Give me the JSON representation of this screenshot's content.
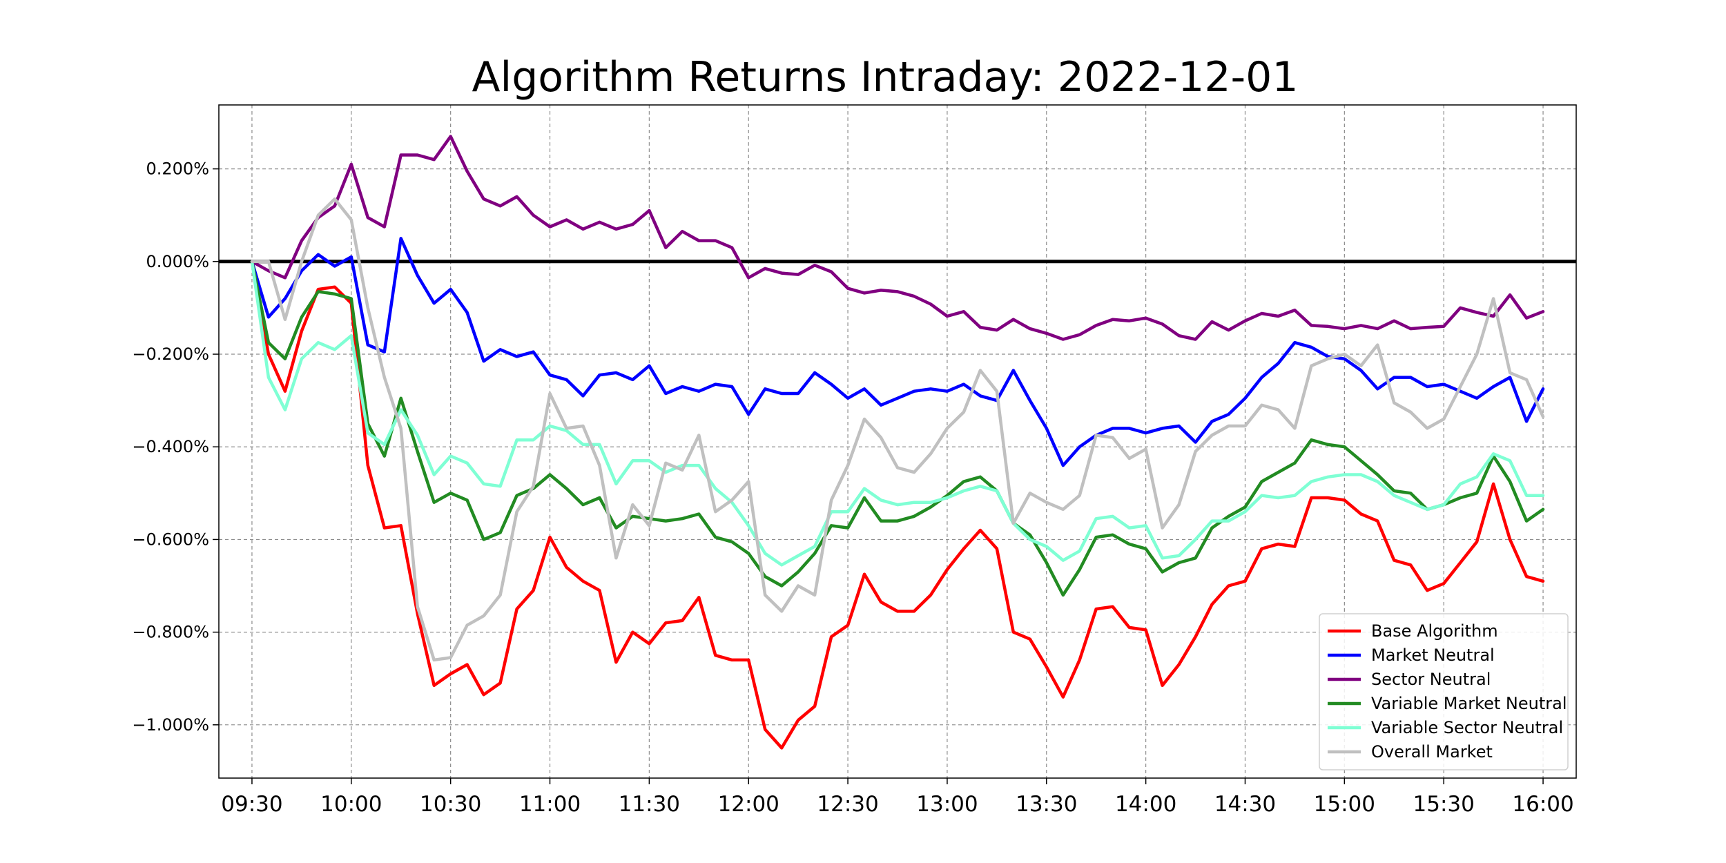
{
  "chart_data": {
    "type": "line",
    "title": "Algorithm Returns Intraday: 2022-12-01",
    "xlabel": "",
    "ylabel": "",
    "x_unit": "time",
    "x": [
      "09:30",
      "09:35",
      "09:40",
      "09:45",
      "09:50",
      "09:55",
      "10:00",
      "10:05",
      "10:10",
      "10:15",
      "10:20",
      "10:25",
      "10:30",
      "10:35",
      "10:40",
      "10:45",
      "10:50",
      "10:55",
      "11:00",
      "11:05",
      "11:10",
      "11:15",
      "11:20",
      "11:25",
      "11:30",
      "11:35",
      "11:40",
      "11:45",
      "11:50",
      "11:55",
      "12:00",
      "12:05",
      "12:10",
      "12:15",
      "12:20",
      "12:25",
      "12:30",
      "12:35",
      "12:40",
      "12:45",
      "12:50",
      "12:55",
      "13:00",
      "13:05",
      "13:10",
      "13:15",
      "13:20",
      "13:25",
      "13:30",
      "13:35",
      "13:40",
      "13:45",
      "13:50",
      "13:55",
      "14:00",
      "14:05",
      "14:10",
      "14:15",
      "14:20",
      "14:25",
      "14:30",
      "14:35",
      "14:40",
      "14:45",
      "14:50",
      "14:55",
      "15:00",
      "15:05",
      "15:10",
      "15:15",
      "15:20",
      "15:25",
      "15:30",
      "15:35",
      "15:40",
      "15:45",
      "15:50",
      "15:55",
      "16:00"
    ],
    "xlim": [
      "09:20",
      "16:10"
    ],
    "xticks": [
      "09:30",
      "10:00",
      "10:30",
      "11:00",
      "11:30",
      "12:00",
      "12:30",
      "13:00",
      "13:30",
      "14:00",
      "14:30",
      "15:00",
      "15:30",
      "16:00"
    ],
    "ylim": [
      -1.115,
      0.338
    ],
    "y_unit": "percent",
    "yticks": [
      0.2,
      0.0,
      -0.2,
      -0.4,
      -0.6,
      -0.8,
      -1.0
    ],
    "ytick_labels": [
      "0.200%",
      "0.000%",
      "−0.200%",
      "−0.400%",
      "−0.600%",
      "−0.800%",
      "−1.000%"
    ],
    "grid": true,
    "grid_style": "dashed",
    "reference_line": {
      "y": 0.0,
      "color": "#000000"
    },
    "legend_position": "lower-right",
    "series": [
      {
        "name": "Base Algorithm",
        "color": "#ff0000",
        "values": [
          0.0,
          -0.2,
          -0.28,
          -0.15,
          -0.06,
          -0.055,
          -0.09,
          -0.44,
          -0.575,
          -0.57,
          -0.76,
          -0.915,
          -0.89,
          -0.87,
          -0.935,
          -0.91,
          -0.75,
          -0.71,
          -0.595,
          -0.66,
          -0.69,
          -0.71,
          -0.865,
          -0.8,
          -0.825,
          -0.78,
          -0.775,
          -0.725,
          -0.85,
          -0.86,
          -0.86,
          -1.01,
          -1.05,
          -0.99,
          -0.96,
          -0.81,
          -0.785,
          -0.675,
          -0.735,
          -0.755,
          -0.755,
          -0.72,
          -0.665,
          -0.62,
          -0.58,
          -0.62,
          -0.8,
          -0.815,
          -0.875,
          -0.94,
          -0.86,
          -0.75,
          -0.745,
          -0.79,
          -0.795,
          -0.915,
          -0.87,
          -0.81,
          -0.74,
          -0.7,
          -0.69,
          -0.62,
          -0.61,
          -0.615,
          -0.51,
          -0.51,
          -0.515,
          -0.545,
          -0.56,
          -0.645,
          -0.655,
          -0.71,
          -0.695,
          -0.65,
          -0.605,
          -0.48,
          -0.6,
          -0.68,
          -0.69
        ]
      },
      {
        "name": "Market Neutral",
        "color": "#0000ff",
        "values": [
          0.0,
          -0.12,
          -0.08,
          -0.02,
          0.015,
          -0.01,
          0.01,
          -0.18,
          -0.195,
          0.05,
          -0.03,
          -0.09,
          -0.06,
          -0.11,
          -0.215,
          -0.19,
          -0.205,
          -0.195,
          -0.245,
          -0.255,
          -0.29,
          -0.245,
          -0.24,
          -0.255,
          -0.225,
          -0.285,
          -0.27,
          -0.28,
          -0.265,
          -0.27,
          -0.33,
          -0.275,
          -0.285,
          -0.285,
          -0.24,
          -0.265,
          -0.295,
          -0.275,
          -0.31,
          -0.295,
          -0.28,
          -0.275,
          -0.28,
          -0.265,
          -0.29,
          -0.3,
          -0.235,
          -0.3,
          -0.36,
          -0.44,
          -0.4,
          -0.375,
          -0.36,
          -0.36,
          -0.37,
          -0.36,
          -0.355,
          -0.39,
          -0.345,
          -0.33,
          -0.295,
          -0.25,
          -0.22,
          -0.175,
          -0.185,
          -0.205,
          -0.21,
          -0.235,
          -0.275,
          -0.25,
          -0.25,
          -0.27,
          -0.265,
          -0.28,
          -0.295,
          -0.27,
          -0.25,
          -0.345,
          -0.275
        ]
      },
      {
        "name": "Sector Neutral",
        "color": "#800080",
        "values": [
          0.0,
          -0.02,
          -0.035,
          0.045,
          0.095,
          0.12,
          0.21,
          0.095,
          0.075,
          0.23,
          0.23,
          0.22,
          0.27,
          0.195,
          0.135,
          0.12,
          0.14,
          0.1,
          0.075,
          0.09,
          0.07,
          0.085,
          0.07,
          0.08,
          0.11,
          0.03,
          0.065,
          0.045,
          0.045,
          0.03,
          -0.035,
          -0.015,
          -0.025,
          -0.028,
          -0.008,
          -0.022,
          -0.058,
          -0.068,
          -0.062,
          -0.065,
          -0.075,
          -0.092,
          -0.118,
          -0.108,
          -0.142,
          -0.148,
          -0.125,
          -0.145,
          -0.155,
          -0.168,
          -0.158,
          -0.138,
          -0.125,
          -0.128,
          -0.122,
          -0.135,
          -0.16,
          -0.168,
          -0.13,
          -0.148,
          -0.128,
          -0.112,
          -0.118,
          -0.105,
          -0.138,
          -0.14,
          -0.145,
          -0.138,
          -0.145,
          -0.128,
          -0.145,
          -0.142,
          -0.14,
          -0.1,
          -0.11,
          -0.118,
          -0.072,
          -0.122,
          -0.108
        ]
      },
      {
        "name": "Variable Market Neutral",
        "color": "#228b22",
        "values": [
          0.0,
          -0.175,
          -0.21,
          -0.12,
          -0.065,
          -0.07,
          -0.08,
          -0.35,
          -0.42,
          -0.295,
          -0.41,
          -0.52,
          -0.5,
          -0.515,
          -0.6,
          -0.585,
          -0.505,
          -0.49,
          -0.46,
          -0.49,
          -0.525,
          -0.51,
          -0.575,
          -0.55,
          -0.555,
          -0.56,
          -0.555,
          -0.545,
          -0.595,
          -0.605,
          -0.63,
          -0.68,
          -0.7,
          -0.67,
          -0.63,
          -0.57,
          -0.575,
          -0.51,
          -0.56,
          -0.56,
          -0.55,
          -0.53,
          -0.505,
          -0.475,
          -0.465,
          -0.495,
          -0.565,
          -0.59,
          -0.65,
          -0.72,
          -0.665,
          -0.595,
          -0.59,
          -0.61,
          -0.62,
          -0.67,
          -0.65,
          -0.64,
          -0.575,
          -0.55,
          -0.53,
          -0.475,
          -0.455,
          -0.435,
          -0.385,
          -0.395,
          -0.4,
          -0.43,
          -0.46,
          -0.495,
          -0.5,
          -0.535,
          -0.525,
          -0.51,
          -0.5,
          -0.42,
          -0.475,
          -0.56,
          -0.535
        ]
      },
      {
        "name": "Variable Sector Neutral",
        "color": "#7fffd4",
        "values": [
          0.0,
          -0.25,
          -0.32,
          -0.21,
          -0.175,
          -0.19,
          -0.16,
          -0.37,
          -0.395,
          -0.32,
          -0.375,
          -0.46,
          -0.42,
          -0.435,
          -0.48,
          -0.485,
          -0.385,
          -0.385,
          -0.355,
          -0.365,
          -0.395,
          -0.395,
          -0.48,
          -0.43,
          -0.43,
          -0.455,
          -0.44,
          -0.44,
          -0.49,
          -0.52,
          -0.57,
          -0.63,
          -0.655,
          -0.635,
          -0.615,
          -0.54,
          -0.54,
          -0.49,
          -0.515,
          -0.525,
          -0.52,
          -0.52,
          -0.51,
          -0.495,
          -0.485,
          -0.495,
          -0.565,
          -0.6,
          -0.615,
          -0.645,
          -0.625,
          -0.555,
          -0.55,
          -0.575,
          -0.57,
          -0.64,
          -0.635,
          -0.6,
          -0.56,
          -0.56,
          -0.54,
          -0.505,
          -0.51,
          -0.505,
          -0.475,
          -0.465,
          -0.46,
          -0.46,
          -0.475,
          -0.505,
          -0.52,
          -0.535,
          -0.525,
          -0.48,
          -0.465,
          -0.415,
          -0.43,
          -0.505,
          -0.505
        ]
      },
      {
        "name": "Overall Market",
        "color": "#c0c0c0",
        "values": [
          0.0,
          0.0,
          -0.125,
          0.0,
          0.1,
          0.135,
          0.09,
          -0.1,
          -0.25,
          -0.36,
          -0.745,
          -0.86,
          -0.855,
          -0.785,
          -0.765,
          -0.72,
          -0.54,
          -0.485,
          -0.285,
          -0.36,
          -0.355,
          -0.44,
          -0.64,
          -0.525,
          -0.57,
          -0.435,
          -0.45,
          -0.375,
          -0.54,
          -0.515,
          -0.475,
          -0.72,
          -0.755,
          -0.7,
          -0.72,
          -0.515,
          -0.44,
          -0.34,
          -0.38,
          -0.445,
          -0.455,
          -0.415,
          -0.36,
          -0.325,
          -0.235,
          -0.28,
          -0.565,
          -0.5,
          -0.52,
          -0.535,
          -0.505,
          -0.375,
          -0.38,
          -0.425,
          -0.405,
          -0.575,
          -0.525,
          -0.41,
          -0.375,
          -0.355,
          -0.355,
          -0.31,
          -0.32,
          -0.36,
          -0.225,
          -0.21,
          -0.2,
          -0.225,
          -0.18,
          -0.305,
          -0.325,
          -0.36,
          -0.34,
          -0.27,
          -0.2,
          -0.08,
          -0.24,
          -0.255,
          -0.335
        ]
      }
    ]
  }
}
